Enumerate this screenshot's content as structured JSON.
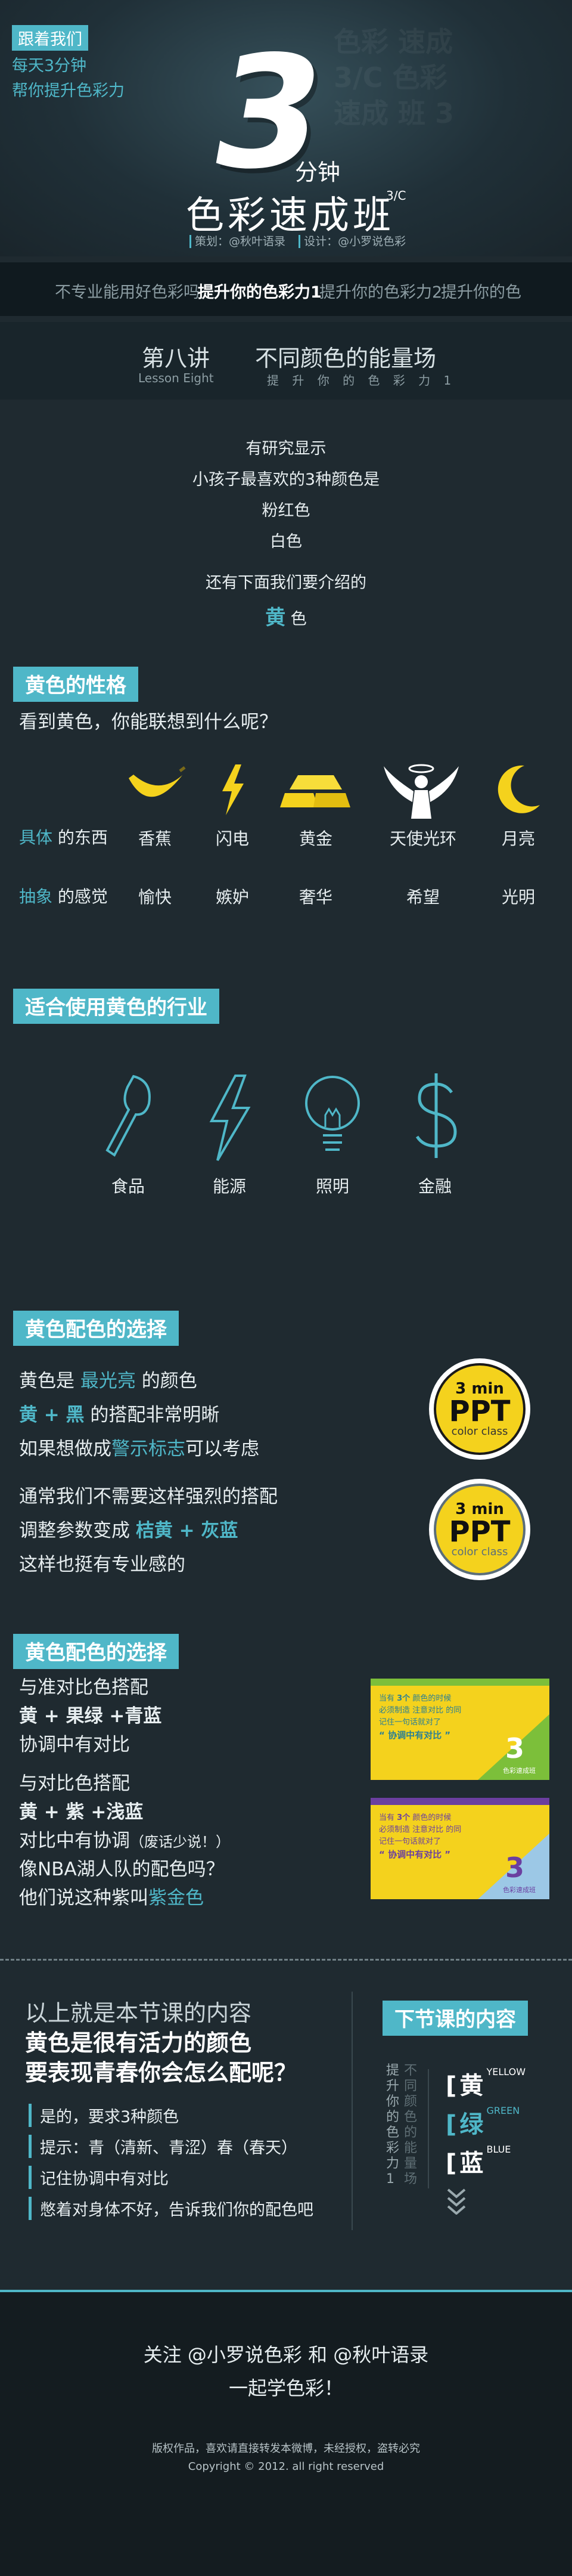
{
  "header": {
    "follow_tag": "跟着我们",
    "follow_line1": "每天3分钟",
    "follow_line2": "帮你提升色彩力",
    "big_number": "3",
    "minutes": "分钟",
    "title": "色彩速成班",
    "title_sup": "3/C",
    "credit_planner": "策划：@秋叶语录",
    "credit_design": "设计：@小罗说色彩"
  },
  "nav": {
    "items": [
      "不专业能用好色彩吗",
      "提升你的色彩力1",
      "提升你的色彩力2",
      "提升你的色"
    ],
    "active_index": 1
  },
  "lesson": {
    "number": "第八讲",
    "number_en": "Lesson Eight",
    "title": "不同颜色的能量场",
    "subtitle": "提 升 你 的 色 彩 力 1"
  },
  "intro": {
    "line1": "有研究显示",
    "line2": "小孩子最喜欢的3种颜色是",
    "line3": "粉红色",
    "line4": "白色",
    "line5": "还有下面我们要介绍的",
    "highlight": "黄",
    "highlight_suffix": " 色"
  },
  "personality": {
    "tag": "黄色的性格",
    "question": "看到黄色，你能联想到什么呢？",
    "concrete_label_a": "具体",
    "concrete_label_b": " 的东西",
    "abstract_label_a": "抽象",
    "abstract_label_b": " 的感觉",
    "items": [
      {
        "icon": "banana-icon",
        "concrete": "香蕉",
        "abstract": "愉快"
      },
      {
        "icon": "lightning-icon",
        "concrete": "闪电",
        "abstract": "嫉妒"
      },
      {
        "icon": "gold-bars-icon",
        "concrete": "黄金",
        "abstract": "奢华"
      },
      {
        "icon": "angel-icon",
        "concrete": "天使光环",
        "abstract": "希望"
      },
      {
        "icon": "crescent-moon-icon",
        "concrete": "月亮",
        "abstract": "光明"
      }
    ]
  },
  "industries": {
    "tag": "适合使用黄色的行业",
    "items": [
      {
        "icon": "fork-spoon-icon",
        "label": "食品"
      },
      {
        "icon": "lightning-outline-icon",
        "label": "能源"
      },
      {
        "icon": "light-bulb-icon",
        "label": "照明"
      },
      {
        "icon": "dollar-sign-icon",
        "label": "金融"
      }
    ]
  },
  "matching1": {
    "tag": "黄色配色的选择",
    "l1_a": "黄色是 ",
    "l1_b": "最光亮",
    "l1_c": " 的颜色",
    "l2_a": "黄 + 黑",
    "l2_b": " 的搭配非常明晰",
    "l3_a": "如果想做成",
    "l3_b": "警示标志",
    "l3_c": "可以考虑",
    "l4": "通常我们不需要这样强烈的搭配",
    "l5_a": "调整参数变成 ",
    "l5_b": "桔黄 + 灰蓝",
    "l6": "这样也挺有专业感的",
    "badge_min": "3 min",
    "badge_ppt": "PPT",
    "badge_cc": "color class",
    "colors": {
      "accent": "#4fb7c8",
      "yellow": "#f4d21d",
      "bg": "#1f2a30"
    }
  },
  "matching2": {
    "tag": "黄色配色的选择",
    "l1": "与准对比色搭配",
    "l2": "黄 + 果绿 +青蓝",
    "l3": "协调中有对比",
    "l4": "与对比色搭配",
    "l5": "黄 + 紫 +浅蓝",
    "l6_a": "对比中有协调",
    "l6_b": "（废话少说！）",
    "l7": "像NBA湖人队的配色吗？",
    "l8_a": "他们说这种紫叫",
    "l8_b": "紫金色",
    "card_line1_a": "当有 ",
    "card_line1_b": "3个",
    "card_line1_c": " 颜色的时候",
    "card_line2": "必须制造 注意对比 的同",
    "card_line3": "记住一句话就对了",
    "card_line4": "“ 协调中有对比 ”",
    "card_brand": "色彩速成班"
  },
  "summary": {
    "line1": "以上就是本节课的内容",
    "line2": "黄色是很有活力的颜色",
    "line3": "要表现青春你会怎么配呢？",
    "items": [
      "是的，要求3种颜色",
      "提示：青（清新、青涩）春（春天）",
      "记住协调中有对比",
      "憋着对身体不好，告诉我们你的配色吧"
    ],
    "next_tag": "下节课的内容",
    "vertical_1": "提升你的色彩力1",
    "vertical_2": "不同颜色的能量场",
    "next_items": [
      {
        "zh": "黄",
        "en": "YELLOW"
      },
      {
        "zh": "绿",
        "en": "GREEN"
      },
      {
        "zh": "蓝",
        "en": "BLUE"
      }
    ]
  },
  "footer": {
    "line1": "关注 @小罗说色彩 和 @秋叶语录",
    "line2": "一起学色彩！",
    "copyright1": "版权作品，喜欢请直接转发本微博，未经授权，盗转必究",
    "copyright2": "Copyright © 2012. all right reserved"
  }
}
